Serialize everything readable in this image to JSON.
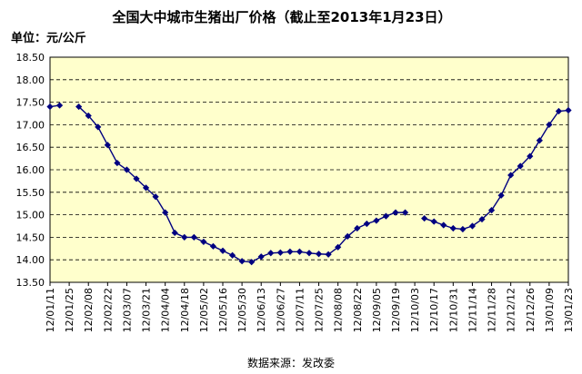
{
  "chart_data": {
    "type": "line",
    "title": "全国大中城市生猪出厂价格（截止至2013年1月23日）",
    "unit_label": "单位：元/公斤",
    "source": "数据来源：发改委",
    "ylim": [
      13.5,
      18.5
    ],
    "yticks": [
      "13.50",
      "14.00",
      "14.50",
      "15.00",
      "15.50",
      "16.00",
      "16.50",
      "17.00",
      "17.50",
      "18.00",
      "18.50"
    ],
    "grid": "horizontal dashed",
    "legend": "none",
    "plot_background": "#ffffcc",
    "line_color": "#000080",
    "x_tick_labels": [
      "12/01/11",
      "12/01/25",
      "12/02/08",
      "12/02/22",
      "12/03/07",
      "12/03/21",
      "12/04/04",
      "12/04/18",
      "12/05/02",
      "12/05/16",
      "12/05/30",
      "12/06/13",
      "12/06/27",
      "12/07/11",
      "12/07/25",
      "12/08/08",
      "12/08/22",
      "12/09/05",
      "12/09/19",
      "12/10/03",
      "12/10/17",
      "12/10/31",
      "12/11/14",
      "12/11/28",
      "12/12/12",
      "12/12/26",
      "13/01/09",
      "13/01/23"
    ],
    "series": [
      {
        "values": [
          17.4,
          17.43,
          null,
          17.4,
          17.2,
          16.95,
          16.55,
          16.15,
          16.0,
          15.8,
          15.6,
          15.4,
          15.05,
          14.6,
          14.5,
          14.5,
          14.4,
          14.3,
          14.2,
          14.1,
          13.97,
          13.95,
          14.07,
          14.15,
          14.16,
          14.18,
          14.18,
          14.15,
          14.13,
          14.12,
          14.28,
          14.52,
          14.7,
          14.8,
          14.87,
          14.97,
          15.05,
          15.05,
          null,
          14.92,
          14.85,
          14.77,
          14.7,
          14.68,
          14.75,
          14.9,
          15.1,
          15.43,
          15.88,
          16.08,
          16.3,
          16.65,
          17.0,
          17.3,
          17.32
        ]
      }
    ]
  }
}
